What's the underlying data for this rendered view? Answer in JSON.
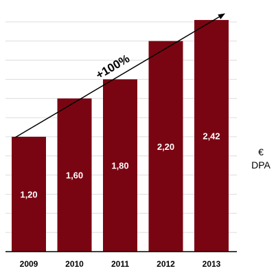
{
  "chart_data": {
    "type": "bar",
    "categories": [
      "2009",
      "2010",
      "2011",
      "2012",
      "2013"
    ],
    "values": [
      1.2,
      1.6,
      1.8,
      2.2,
      2.42
    ],
    "data_labels": [
      "1,20",
      "1,60",
      "1,80",
      "2,20",
      "2,42"
    ],
    "ylim": [
      0,
      2.6
    ],
    "grid": true,
    "annotation": "+100%",
    "unit_label": {
      "symbol": "€",
      "text": "DPA"
    },
    "colors": {
      "bar": "#7a0512",
      "grid": "#dcdcdc",
      "axis": "#000000"
    }
  }
}
